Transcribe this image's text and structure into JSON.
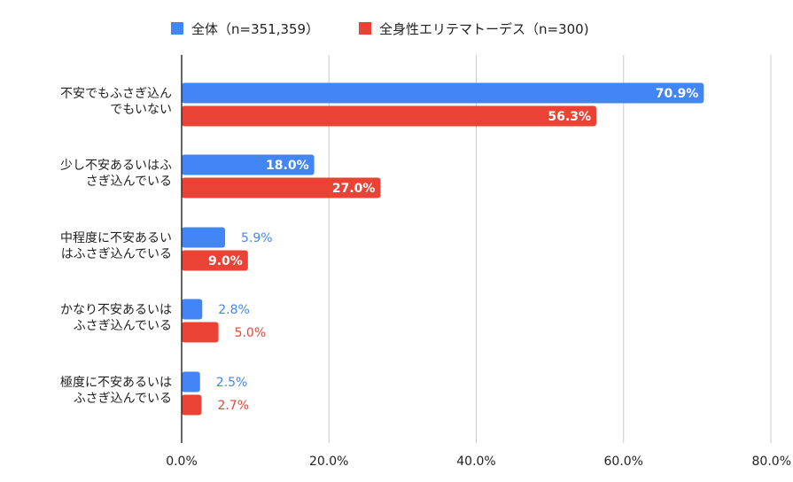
{
  "chart_data": {
    "type": "bar",
    "orientation": "horizontal",
    "title": "",
    "xlabel": "",
    "ylabel": "",
    "xlim": [
      0,
      80
    ],
    "x_ticks": [
      "0.0%",
      "20.0%",
      "40.0%",
      "60.0%",
      "80.0%"
    ],
    "grid": "vertical",
    "legend_position": "top-center",
    "categories": [
      [
        "不安でもふさぎ込ん",
        "でもいない"
      ],
      [
        "少し不安あるいはふ",
        "さぎ込んでいる"
      ],
      [
        "中程度に不安あるい",
        "はふさぎ込んでいる"
      ],
      [
        "かなり不安あるいは",
        "ふさぎ込んでいる"
      ],
      [
        "極度に不安あるいは",
        "ふさぎ込んでいる"
      ]
    ],
    "series": [
      {
        "name": "全体（n=351,359）",
        "color": "#4285F4",
        "values": [
          70.9,
          18.0,
          5.9,
          2.8,
          2.5
        ],
        "labels": [
          "70.9%",
          "18.0%",
          "5.9%",
          "2.8%",
          "2.5%"
        ]
      },
      {
        "name": "全身性エリテマトーデス（n=300)",
        "color": "#EA4335",
        "values": [
          56.3,
          27.0,
          9.0,
          5.0,
          2.7
        ],
        "labels": [
          "56.3%",
          "27.0%",
          "9.0%",
          "5.0%",
          "2.7%"
        ]
      }
    ]
  }
}
